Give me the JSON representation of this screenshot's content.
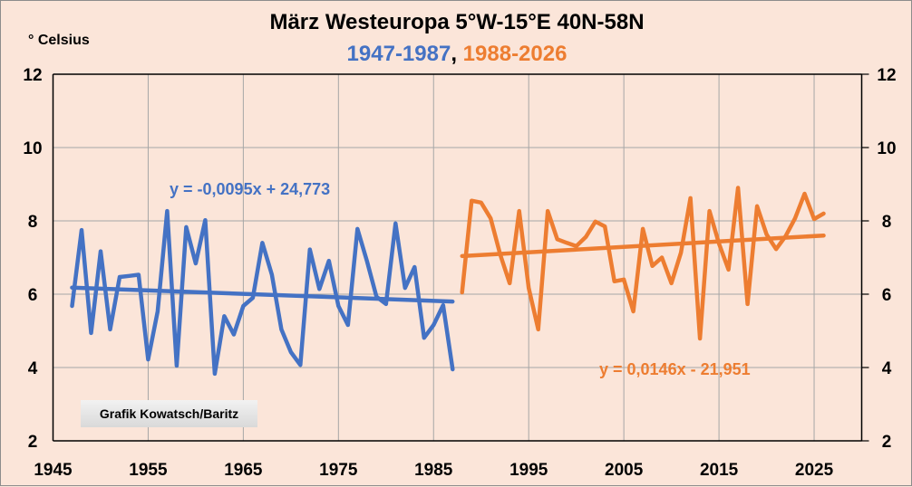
{
  "chart_data": {
    "type": "line",
    "title": "März Westeuropa 5°W-15°E 40N-58N",
    "subtitle_parts": [
      {
        "text": "1947-1987",
        "color": "#4472c4"
      },
      {
        "text": ", ",
        "color": "#000000"
      },
      {
        "text": "1988-2026",
        "color": "#ed7d31"
      }
    ],
    "ylabel": "° Celsius",
    "xlabel": "",
    "xlim": [
      1945,
      2030
    ],
    "ylim": [
      2,
      12
    ],
    "x_ticks": [
      1945,
      1955,
      1965,
      1975,
      1985,
      1995,
      2005,
      2015,
      2025
    ],
    "y_ticks": [
      2,
      4,
      6,
      8,
      10,
      12
    ],
    "grid": true,
    "series": [
      {
        "name": "1947-1987",
        "color": "#4472c4",
        "x": [
          1947,
          1948,
          1949,
          1950,
          1951,
          1952,
          1953,
          1954,
          1955,
          1956,
          1957,
          1958,
          1959,
          1960,
          1961,
          1962,
          1963,
          1964,
          1965,
          1966,
          1967,
          1968,
          1969,
          1970,
          1971,
          1972,
          1973,
          1974,
          1975,
          1976,
          1977,
          1978,
          1979,
          1980,
          1981,
          1982,
          1983,
          1984,
          1985,
          1986,
          1987
        ],
        "values": [
          5.68,
          7.75,
          4.94,
          7.17,
          5.04,
          6.47,
          6.5,
          6.53,
          4.22,
          5.53,
          8.27,
          4.05,
          7.83,
          6.84,
          8.02,
          3.83,
          5.4,
          4.9,
          5.68,
          5.9,
          7.4,
          6.53,
          5.04,
          4.42,
          4.07,
          7.22,
          6.14,
          6.91,
          5.68,
          5.16,
          7.78,
          6.9,
          5.93,
          5.73,
          7.93,
          6.17,
          6.74,
          4.81,
          5.16,
          5.7,
          3.95
        ],
        "trend": {
          "equation": "y = -0,0095x + 24,773",
          "start": [
            1947,
            6.18
          ],
          "end": [
            1987,
            5.8
          ]
        }
      },
      {
        "name": "1988-2026",
        "color": "#ed7d31",
        "x": [
          1988,
          1989,
          1990,
          1991,
          1992,
          1993,
          1994,
          1995,
          1996,
          1997,
          1998,
          1999,
          2000,
          2001,
          2002,
          2003,
          2004,
          2005,
          2006,
          2007,
          2008,
          2009,
          2010,
          2011,
          2012,
          2013,
          2014,
          2015,
          2016,
          2017,
          2018,
          2019,
          2020,
          2021,
          2022,
          2023,
          2024,
          2025,
          2026
        ],
        "values": [
          6.05,
          8.55,
          8.5,
          8.07,
          7.09,
          6.3,
          8.27,
          6.17,
          5.04,
          8.27,
          7.5,
          7.4,
          7.31,
          7.56,
          7.98,
          7.85,
          6.35,
          6.4,
          5.53,
          7.78,
          6.77,
          7.0,
          6.3,
          7.13,
          8.62,
          4.79,
          8.27,
          7.38,
          6.67,
          8.9,
          5.73,
          8.4,
          7.63,
          7.23,
          7.58,
          8.07,
          8.74,
          8.05,
          8.2
        ],
        "trend": {
          "equation": "y = 0,0146x - 21,951",
          "start": [
            1988,
            7.04
          ],
          "end": [
            2026,
            7.6
          ]
        }
      }
    ],
    "annotations": [
      "y = -0,0095x + 24,773",
      "y = 0,0146x - 21,951",
      "Grafik Kowatsch/Baritz"
    ],
    "legend": "none"
  },
  "credit": "Grafik Kowatsch/Baritz"
}
